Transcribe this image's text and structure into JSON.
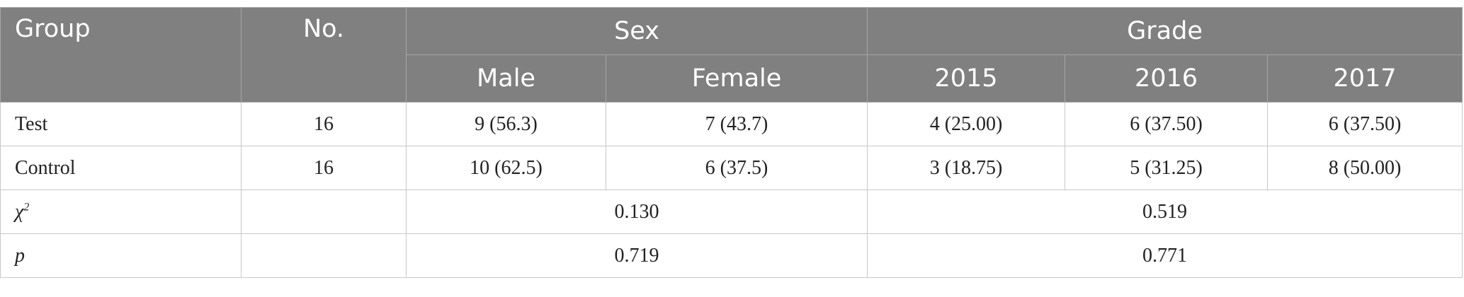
{
  "table": {
    "header": [
      [
        "Group",
        "No.",
        "Sex",
        "Grade"
      ],
      [
        "Male",
        "Female",
        "2015",
        "2016",
        "2017"
      ]
    ],
    "rows": [
      [
        "Test",
        "16",
        "9 (56.3)",
        "7 (43.7)",
        "4 (25.00)",
        "6 (37.50)",
        "6 (37.50)"
      ],
      [
        "Control",
        "16",
        "10 (62.5)",
        "6 (37.5)",
        "3 (18.75)",
        "5 (31.25)",
        "8 (50.00)"
      ]
    ],
    "stats": [
      {
        "label": "χ",
        "sup": "2",
        "sex": "0.130",
        "grade": "0.519"
      },
      {
        "label": "p",
        "sex": "0.719",
        "grade": "0.771"
      }
    ]
  }
}
